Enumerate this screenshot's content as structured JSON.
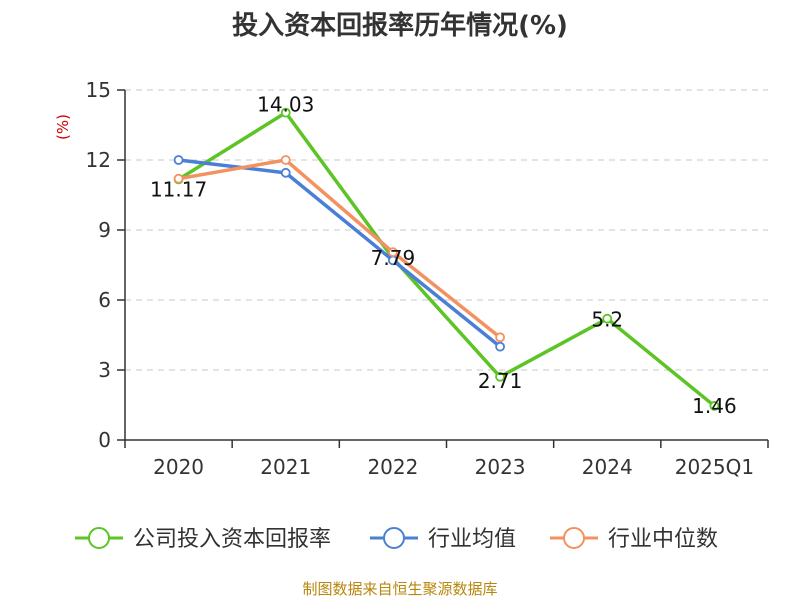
{
  "chart_data": {
    "type": "line",
    "title": "投入资本回报率历年情况(%)",
    "ylabel": "(%)",
    "xlabel": "",
    "categories": [
      "2020",
      "2021",
      "2022",
      "2023",
      "2024",
      "2025Q1"
    ],
    "yticks": [
      0,
      3,
      6,
      9,
      12,
      15
    ],
    "ylim": [
      0,
      15
    ],
    "grid": true,
    "legend_position": "bottom",
    "series": [
      {
        "name": "公司投入资本回报率",
        "color": "#5cc424",
        "values": [
          11.17,
          14.03,
          7.79,
          2.71,
          5.2,
          1.46
        ],
        "labels": [
          "11.17",
          "14.03",
          "7.79",
          "2.71",
          "5.2",
          "1.46"
        ]
      },
      {
        "name": "行业均值",
        "color": "#4a7fd6",
        "values": [
          12.0,
          11.45,
          7.7,
          4.0,
          null,
          null
        ]
      },
      {
        "name": "行业中位数",
        "color": "#f39260",
        "values": [
          11.2,
          12.0,
          8.05,
          4.4,
          null,
          null
        ]
      }
    ],
    "source": "制图数据来自恒生聚源数据库"
  }
}
